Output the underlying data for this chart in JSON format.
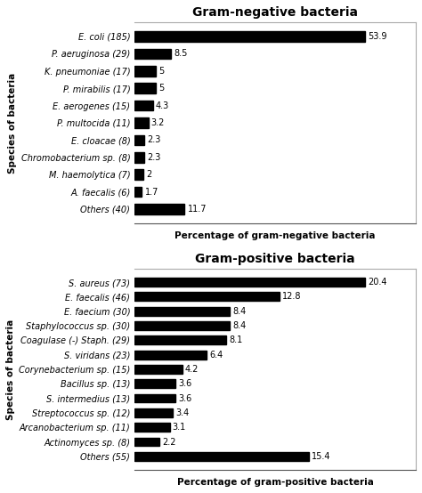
{
  "neg_labels": [
    "E. coli (185)",
    "P. aeruginosa (29)",
    "K. pneumoniae (17)",
    "P. mirabilis (17)",
    "E. aerogenes (15)",
    "P. multocida (11)",
    "E. cloacae (8)",
    "Chromobacterium sp. (8)",
    "M. haemolytica (7)",
    "A. faecalis (6)",
    "Others (40)"
  ],
  "neg_values": [
    53.9,
    8.5,
    5,
    5,
    4.3,
    3.2,
    2.3,
    2.3,
    2,
    1.7,
    11.7
  ],
  "neg_value_labels": [
    "53.9",
    "8.5",
    "5",
    "5",
    "4.3",
    "3.2",
    "2.3",
    "2.3",
    "2",
    "1.7",
    "11.7"
  ],
  "neg_title": "Gram-negative bacteria",
  "neg_xlabel": "Percentage of gram-negative bacteria",
  "neg_ylabel": "Species of bacteria",
  "pos_labels": [
    "S. aureus (73)",
    "E. faecalis (46)",
    "E. faecium (30)",
    "Staphylococcus sp. (30)",
    "Coagulase (-) Staph. (29)",
    "S. viridans (23)",
    "Corynebacterium sp. (15)",
    "Bacillus sp. (13)",
    "S. intermedius (13)",
    "Streptococcus sp. (12)",
    "Arcanobacterium sp. (11)",
    "Actinomyces sp. (8)",
    "Others (55)"
  ],
  "pos_values": [
    20.4,
    12.8,
    8.4,
    8.4,
    8.1,
    6.4,
    4.2,
    3.6,
    3.6,
    3.4,
    3.1,
    2.2,
    15.4
  ],
  "pos_value_labels": [
    "20.4",
    "12.8",
    "8.4",
    "8.4",
    "8.1",
    "6.4",
    "4.2",
    "3.6",
    "3.6",
    "3.4",
    "3.1",
    "2.2",
    "15.4"
  ],
  "pos_title": "Gram-positive bacteria",
  "pos_xlabel": "Percentage of gram-positive bacteria",
  "pos_ylabel": "Species of bacteria",
  "bar_color": "#000000",
  "bg_color": "#ffffff",
  "text_color": "#000000",
  "title_fontsize": 10,
  "label_fontsize": 7,
  "axis_label_fontsize": 7.5,
  "value_fontsize": 7,
  "ylabel_fontsize": 7.5
}
